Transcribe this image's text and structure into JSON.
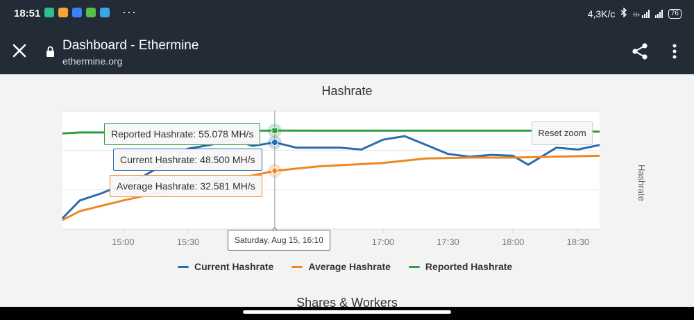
{
  "status_bar": {
    "time": "18:51",
    "more": "···",
    "speed": "4,3K/c",
    "network_type": "H+",
    "battery": "76",
    "app_colors": [
      "#2fbf8f",
      "#f0a63a",
      "#3b82f6",
      "#56c04a",
      "#3aa6e8"
    ]
  },
  "toolbar": {
    "title": "Dashboard - Ethermine",
    "url": "ethermine.org"
  },
  "chart_title": "Hashrate",
  "reset_zoom": "Reset zoom",
  "y_axis_title": "Hashrate",
  "crosshair_label": "Saturday, Aug 15, 16:10",
  "tooltips": {
    "reported": "Reported Hashrate: 55.078 MH/s",
    "current": "Current Hashrate: 48.500 MH/s",
    "average": "Average Hashrate: 32.581 MH/s"
  },
  "legend": {
    "current": "Current Hashrate",
    "average": "Average Hashrate",
    "reported": "Reported Hashrate"
  },
  "section_next": "Shares & Workers",
  "chart_data": {
    "type": "line",
    "title": "Hashrate",
    "ylabel": "Hashrate",
    "x_ticks": [
      "15:00",
      "15:30",
      "16:00",
      "16:30",
      "17:00",
      "17:30",
      "18:00",
      "18:30"
    ],
    "x_range": [
      "14:32",
      "18:40"
    ],
    "y_range_mhs": [
      0,
      66
    ],
    "highlight_time": "16:10",
    "series": [
      {
        "name": "Current Hashrate",
        "color": "#2b6cb0",
        "points": [
          [
            "14:32",
            6
          ],
          [
            "14:40",
            16
          ],
          [
            "14:50",
            20
          ],
          [
            "15:00",
            25
          ],
          [
            "15:10",
            30
          ],
          [
            "15:20",
            37
          ],
          [
            "15:30",
            45
          ],
          [
            "15:40",
            47
          ],
          [
            "15:50",
            50
          ],
          [
            "16:00",
            46.5
          ],
          [
            "16:10",
            48.5
          ],
          [
            "16:20",
            45.5
          ],
          [
            "16:30",
            45.5
          ],
          [
            "16:40",
            45.5
          ],
          [
            "16:50",
            44.5
          ],
          [
            "17:00",
            50
          ],
          [
            "17:10",
            52
          ],
          [
            "17:20",
            47
          ],
          [
            "17:30",
            42
          ],
          [
            "17:40",
            40.5
          ],
          [
            "17:50",
            41.5
          ],
          [
            "18:00",
            41
          ],
          [
            "18:07",
            36
          ],
          [
            "18:20",
            45.5
          ],
          [
            "18:30",
            44.5
          ],
          [
            "18:40",
            47
          ]
        ]
      },
      {
        "name": "Average Hashrate",
        "color": "#ee8722",
        "points": [
          [
            "14:32",
            5
          ],
          [
            "14:40",
            10
          ],
          [
            "15:00",
            16
          ],
          [
            "15:30",
            24
          ],
          [
            "16:00",
            30
          ],
          [
            "16:10",
            32.581
          ],
          [
            "16:30",
            35
          ],
          [
            "17:00",
            37
          ],
          [
            "17:20",
            39.5
          ],
          [
            "17:40",
            40
          ],
          [
            "18:00",
            40
          ],
          [
            "18:20",
            40.5
          ],
          [
            "18:40",
            41
          ]
        ]
      },
      {
        "name": "Reported Hashrate",
        "color": "#2e9e44",
        "points": [
          [
            "14:32",
            53.5
          ],
          [
            "14:40",
            54
          ],
          [
            "15:00",
            54
          ],
          [
            "15:30",
            54.5
          ],
          [
            "16:00",
            55
          ],
          [
            "16:10",
            55.078
          ],
          [
            "16:30",
            55
          ],
          [
            "17:00",
            55
          ],
          [
            "17:30",
            55
          ],
          [
            "18:00",
            55
          ],
          [
            "18:20",
            55
          ],
          [
            "18:40",
            54.5
          ]
        ]
      }
    ]
  }
}
